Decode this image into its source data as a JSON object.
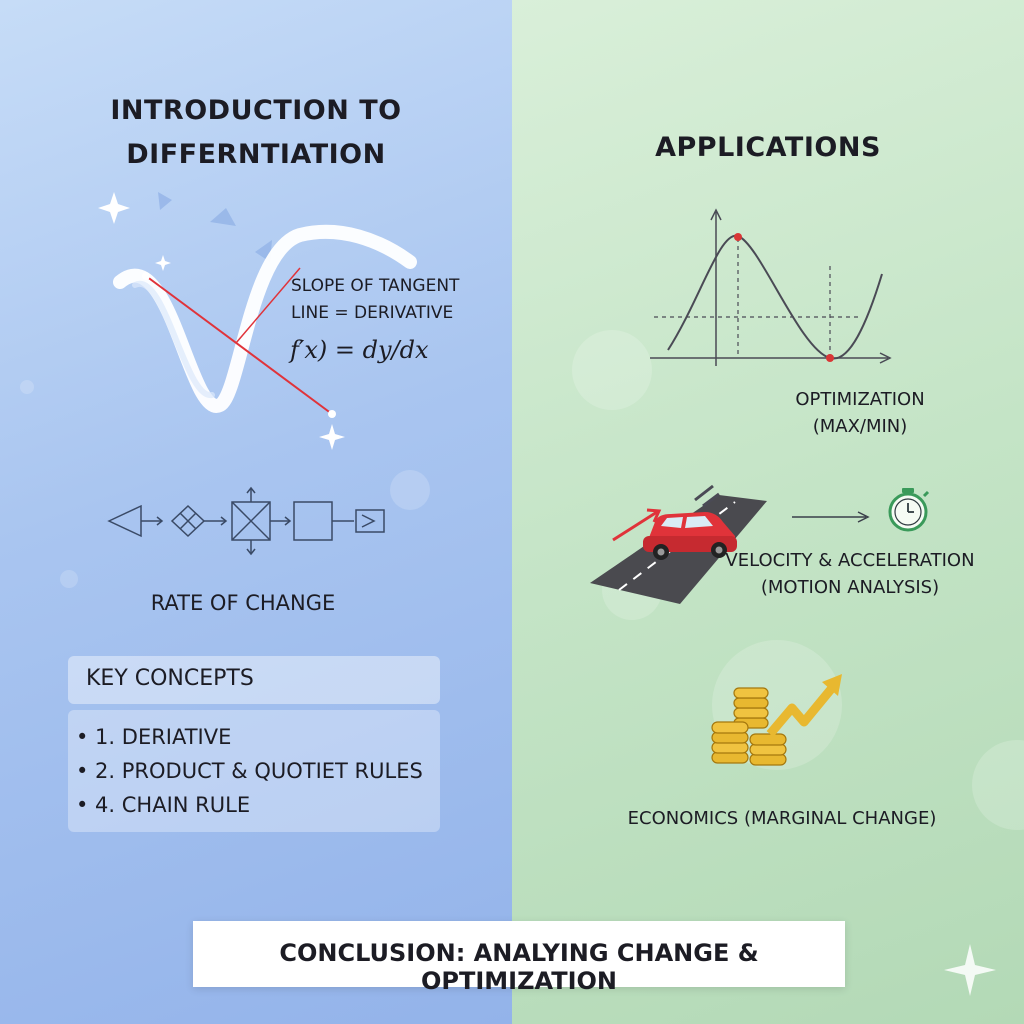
{
  "left": {
    "title": "INTRODUCTION TO\nDIFFERNTIATION",
    "tangent_label": "SLOPE OF TANGENT\nLINE = DERIVATIVE",
    "formula": "f′x) = dy/dx",
    "rate_label": "RATE OF CHANGE",
    "key_concepts": {
      "header": "KEY CONCEPTS",
      "items": [
        "• 1. DERIATIVE",
        "• 2. PRODUCT & QUOTIET RULES",
        "• 4. CHAIN RULE"
      ]
    }
  },
  "right": {
    "title": "APPLICATIONS",
    "optimization_label": "OPTIMIZATION\n(MAX/MIN)",
    "motion_label": "VELOCITY & ACCELERATION\n(MOTION ANALYSIS)",
    "economics_label": "ECONOMICS (MARGINAL CHANGE)"
  },
  "conclusion": "CONCLUSION: ANALYING CHANGE & OPTIMIZATION",
  "colors": {
    "left_panel": "#a9c5f0",
    "right_panel": "#c4e4c6",
    "tangent_line": "#e0333a",
    "car": "#e0333a",
    "coins": "#e8b830",
    "arrow": "#e8b830",
    "stopwatch": "#3a9a5a"
  },
  "icons": [
    "sparkle-icon",
    "stopwatch-icon",
    "car-icon",
    "coins-icon",
    "growth-arrow-icon"
  ]
}
